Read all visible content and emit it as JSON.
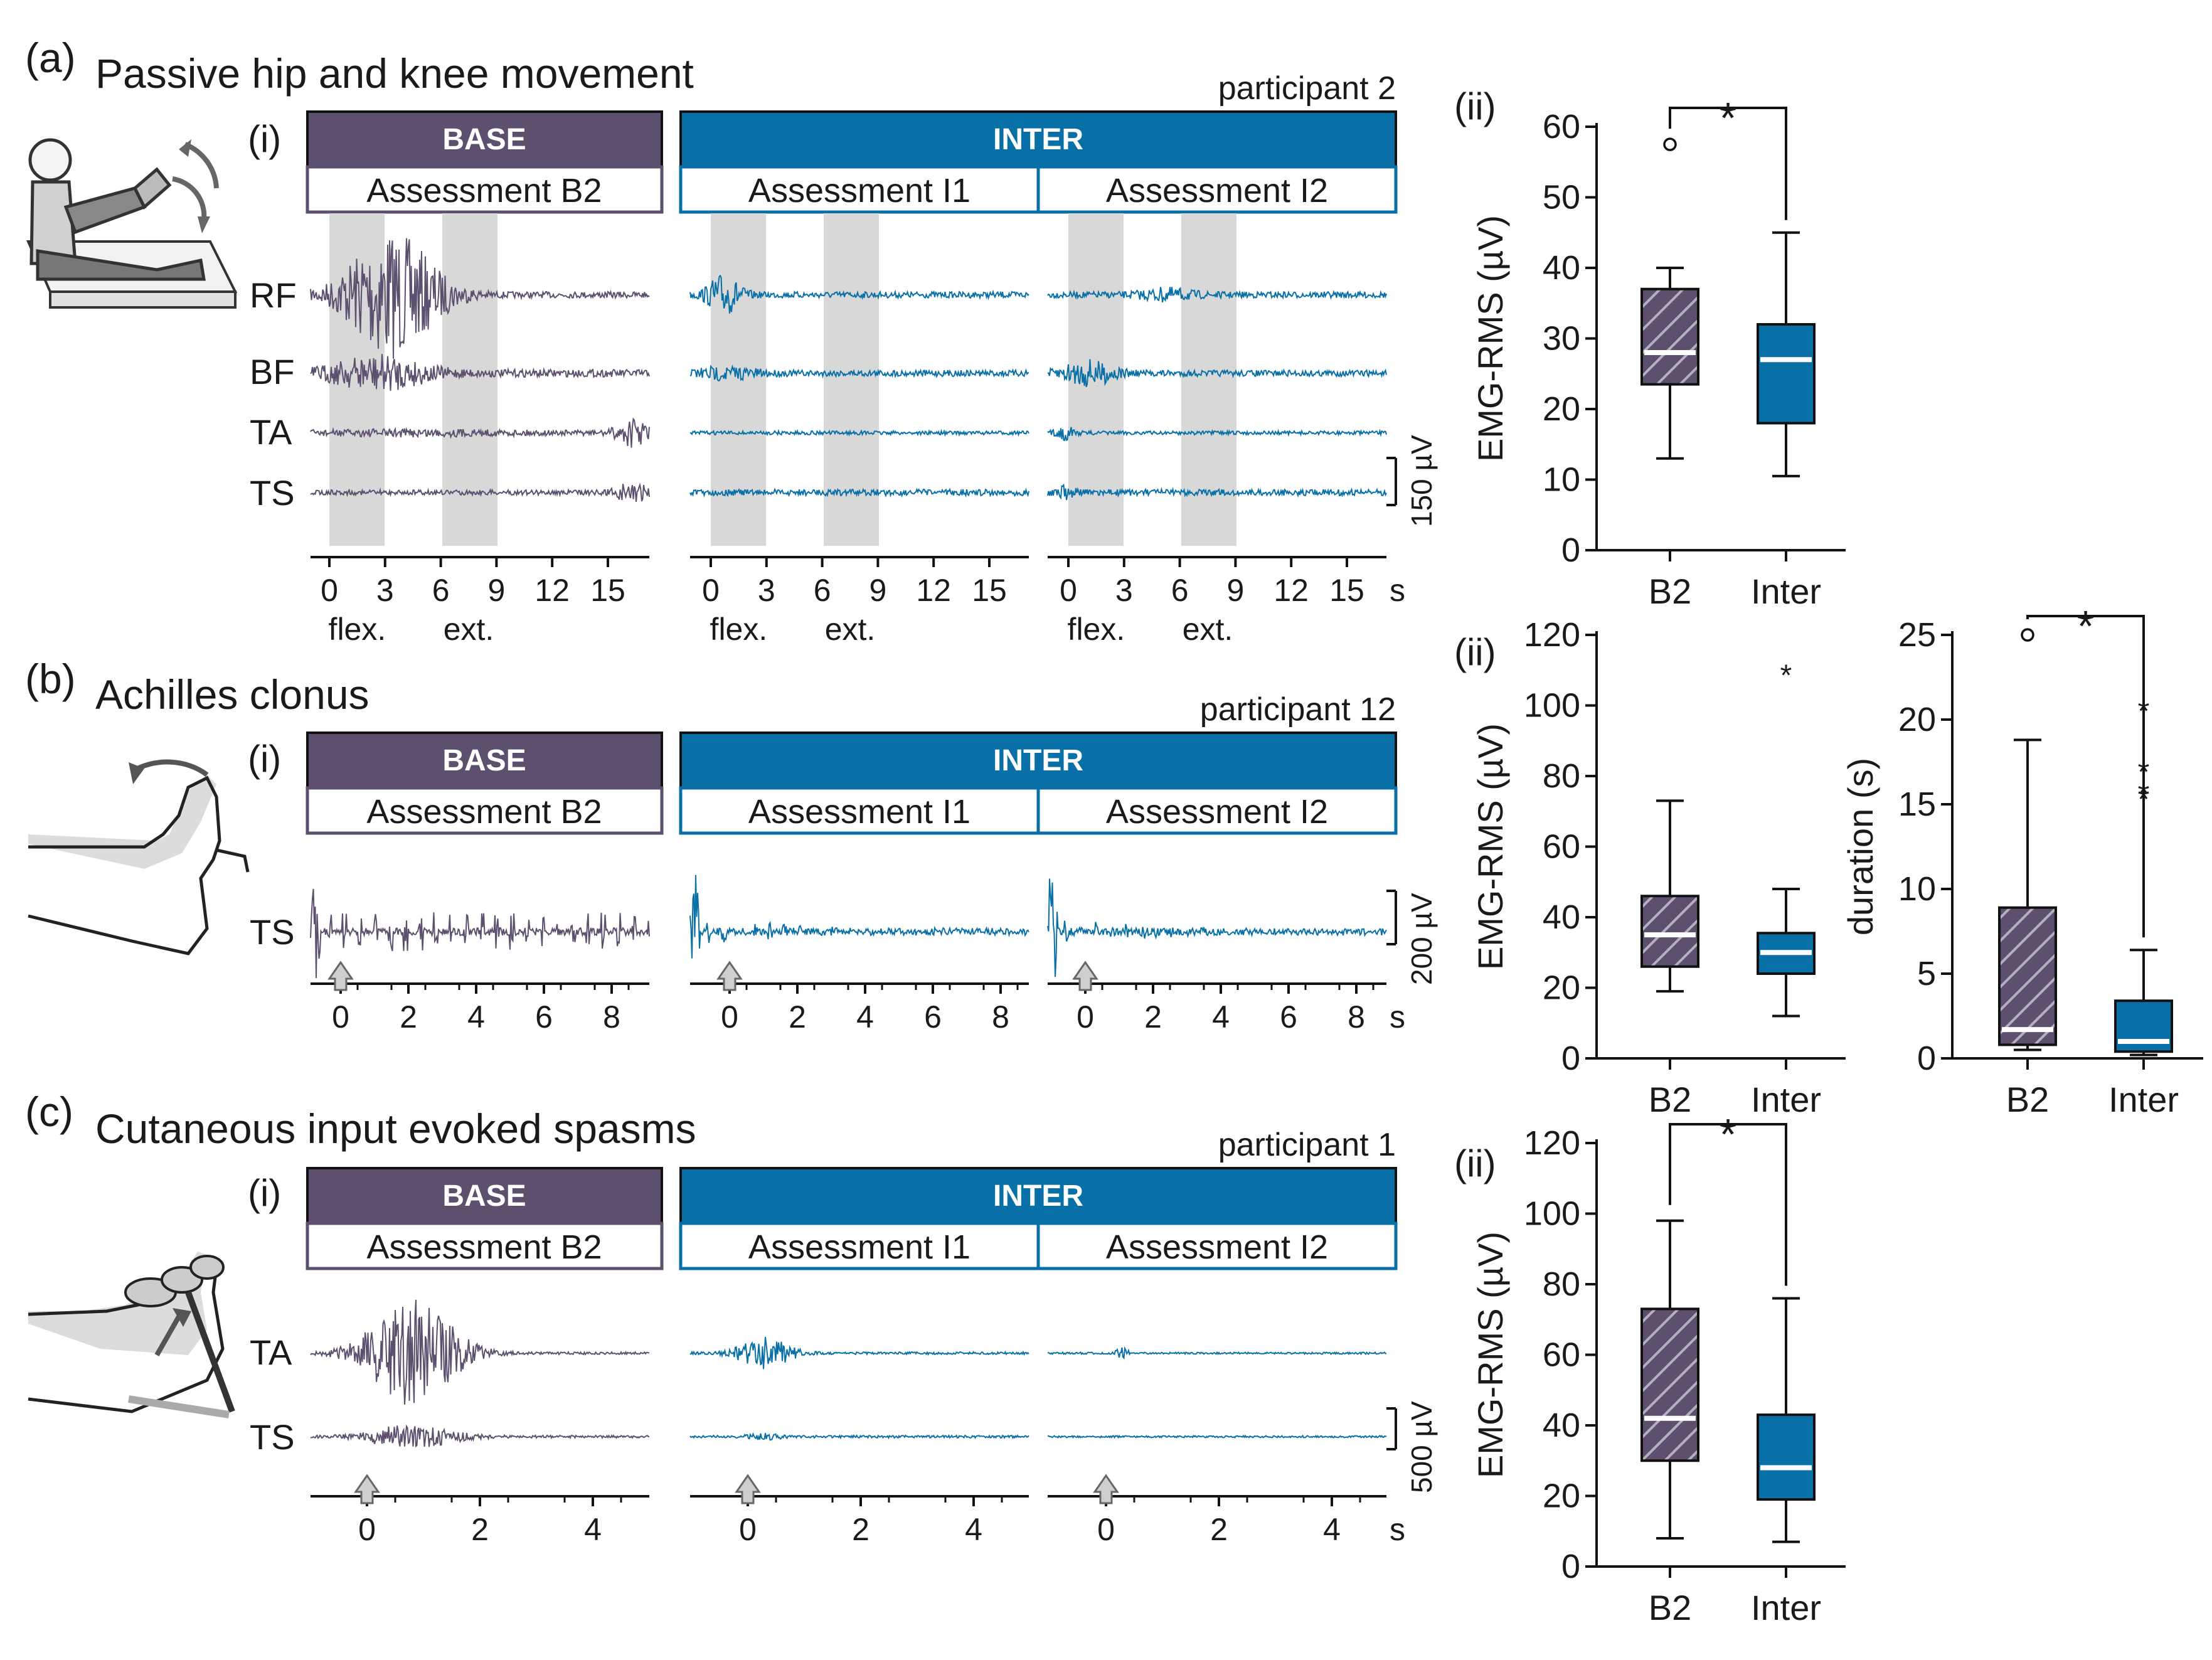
{
  "colors": {
    "base": "#5c506e",
    "inter": "#0870a6",
    "shade": "#d8d8d8",
    "text": "#1a1a1a"
  },
  "panels": [
    {
      "letter": "(a)",
      "title": "Passive hip and knee movement",
      "participant": "participant 2",
      "sub_i": "(i)",
      "sub_ii": "(ii)",
      "base_label": "BASE",
      "inter_label": "INTER",
      "assessments": [
        "Assessment B2",
        "Assessment I1",
        "Assessment I2"
      ],
      "channels": [
        "RF",
        "BF",
        "TA",
        "TS"
      ],
      "scale_bar": "150 µV",
      "time_ticks": [
        "0",
        "3",
        "6",
        "9",
        "12",
        "15"
      ],
      "time_unit": "s",
      "phase_labels": [
        "flex.",
        "ext."
      ]
    },
    {
      "letter": "(b)",
      "title": "Achilles clonus",
      "participant": "participant 12",
      "sub_i": "(i)",
      "sub_ii": "(ii)",
      "base_label": "BASE",
      "inter_label": "INTER",
      "assessments": [
        "Assessment B2",
        "Assessment I1",
        "Assessment I2"
      ],
      "channels": [
        "TS"
      ],
      "scale_bar": "200 µV",
      "time_ticks": [
        "0",
        "2",
        "4",
        "6",
        "8"
      ],
      "time_unit": "s"
    },
    {
      "letter": "(c)",
      "title": "Cutaneous input evoked spasms",
      "participant": "participant 1",
      "sub_i": "(i)",
      "sub_ii": "(ii)",
      "base_label": "BASE",
      "inter_label": "INTER",
      "assessments": [
        "Assessment B2",
        "Assessment I1",
        "Assessment I2"
      ],
      "channels": [
        "TA",
        "TS"
      ],
      "scale_bar": "500 µV",
      "time_ticks": [
        "0",
        "2",
        "4"
      ],
      "time_unit": "s"
    }
  ],
  "chart_data": [
    {
      "type": "box",
      "id": "a-ii",
      "ylabel": "EMG-RMS (µV)",
      "ylim": [
        0,
        60
      ],
      "yticks": [
        "0",
        "10",
        "20",
        "30",
        "40",
        "50",
        "60"
      ],
      "categories": [
        "B2",
        "Inter"
      ],
      "significance": "*",
      "boxes": [
        {
          "name": "B2",
          "min": 13,
          "q1": 23.5,
          "median": 28,
          "q3": 37,
          "max": 40,
          "outliers": [
            {
              "value": 57.5,
              "marker": "o"
            }
          ]
        },
        {
          "name": "Inter",
          "min": 10.5,
          "q1": 18,
          "median": 27,
          "q3": 32,
          "max": 45,
          "outliers": []
        }
      ]
    },
    {
      "type": "box",
      "id": "b-ii",
      "ylabel": "EMG-RMS (µV)",
      "ylim": [
        0,
        120
      ],
      "yticks": [
        "0",
        "20",
        "40",
        "60",
        "80",
        "100",
        "120"
      ],
      "categories": [
        "B2",
        "Inter"
      ],
      "significance": "",
      "boxes": [
        {
          "name": "B2",
          "min": 19,
          "q1": 26,
          "median": 35,
          "q3": 46,
          "max": 73,
          "outliers": []
        },
        {
          "name": "Inter",
          "min": 12,
          "q1": 24,
          "median": 30,
          "q3": 35.5,
          "max": 48,
          "outliers": [
            {
              "value": 110,
              "marker": "*"
            }
          ]
        }
      ]
    },
    {
      "type": "box",
      "id": "b-duration",
      "ylabel": "duration (s)",
      "ylim": [
        0,
        25
      ],
      "yticks": [
        "0",
        "5",
        "10",
        "15",
        "20",
        "25"
      ],
      "categories": [
        "B2",
        "Inter"
      ],
      "significance": "*",
      "boxes": [
        {
          "name": "B2",
          "min": 0.5,
          "q1": 0.8,
          "median": 1.7,
          "q3": 8.9,
          "max": 18.8,
          "outliers": [
            {
              "value": 25,
              "marker": "o"
            }
          ]
        },
        {
          "name": "Inter",
          "min": 0.2,
          "q1": 0.4,
          "median": 1,
          "q3": 3.4,
          "max": 6.4,
          "outliers": [
            {
              "value": 20.8,
              "marker": "*"
            },
            {
              "value": 17.2,
              "marker": "*"
            },
            {
              "value": 15.9,
              "marker": "*"
            },
            {
              "value": 15.6,
              "marker": "*"
            }
          ]
        }
      ]
    },
    {
      "type": "box",
      "id": "c-ii",
      "ylabel": "EMG-RMS (µV)",
      "ylim": [
        0,
        120
      ],
      "yticks": [
        "0",
        "20",
        "40",
        "60",
        "80",
        "100",
        "120"
      ],
      "categories": [
        "B2",
        "Inter"
      ],
      "significance": "*",
      "boxes": [
        {
          "name": "B2",
          "min": 8,
          "q1": 30,
          "median": 42,
          "q3": 73,
          "max": 98,
          "outliers": []
        },
        {
          "name": "Inter",
          "min": 7,
          "q1": 19,
          "median": 28,
          "q3": 43,
          "max": 76,
          "outliers": []
        }
      ]
    }
  ]
}
